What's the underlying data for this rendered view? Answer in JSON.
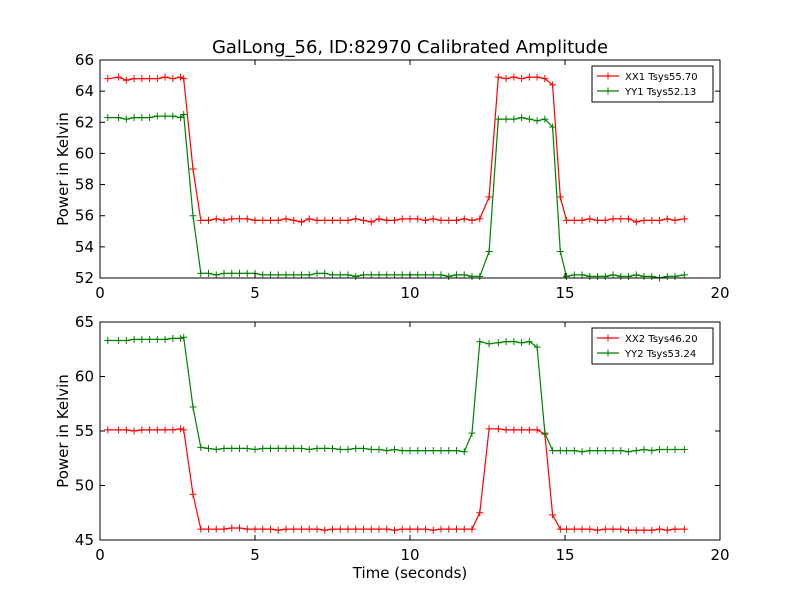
{
  "title": "GalLong_56, ID:82970 Calibrated Amplitude",
  "colors": {
    "xx": "#ff0000",
    "yy": "#008000"
  },
  "chart_data": [
    {
      "type": "line",
      "title": "GalLong_56, ID:82970 Calibrated Amplitude",
      "xlabel": "",
      "ylabel": "Power in Kelvin",
      "xlim": [
        0,
        20
      ],
      "ylim": [
        52,
        66
      ],
      "xticks": [
        0,
        5,
        10,
        15,
        20
      ],
      "yticks": [
        52,
        54,
        56,
        58,
        60,
        62,
        64,
        66
      ],
      "legend_position": "top-right",
      "grid": false,
      "series": [
        {
          "name": "XX1 Tsys55.70",
          "color": "#ff0000",
          "x": [
            0.25,
            0.6,
            0.85,
            1.1,
            1.35,
            1.6,
            1.85,
            2.1,
            2.35,
            2.6,
            2.7,
            3.0,
            3.25,
            3.5,
            3.75,
            4.0,
            4.25,
            4.5,
            4.75,
            5.0,
            5.25,
            5.5,
            5.75,
            6.0,
            6.25,
            6.5,
            6.75,
            7.0,
            7.25,
            7.5,
            7.75,
            8.0,
            8.25,
            8.5,
            8.75,
            9.0,
            9.25,
            9.5,
            9.75,
            10.0,
            10.25,
            10.5,
            10.75,
            11.0,
            11.25,
            11.5,
            11.75,
            12.0,
            12.25,
            12.55,
            12.85,
            13.1,
            13.35,
            13.6,
            13.85,
            14.1,
            14.35,
            14.6,
            14.85,
            15.05,
            15.3,
            15.55,
            15.8,
            16.05,
            16.3,
            16.55,
            16.8,
            17.05,
            17.3,
            17.55,
            17.8,
            18.05,
            18.3,
            18.55,
            18.85
          ],
          "values": [
            64.8,
            64.9,
            64.7,
            64.8,
            64.8,
            64.8,
            64.8,
            64.9,
            64.8,
            64.9,
            64.8,
            59.0,
            55.7,
            55.7,
            55.8,
            55.7,
            55.8,
            55.8,
            55.8,
            55.7,
            55.7,
            55.7,
            55.7,
            55.8,
            55.7,
            55.6,
            55.8,
            55.7,
            55.7,
            55.7,
            55.7,
            55.7,
            55.8,
            55.7,
            55.6,
            55.8,
            55.7,
            55.7,
            55.8,
            55.8,
            55.8,
            55.7,
            55.8,
            55.7,
            55.7,
            55.7,
            55.8,
            55.7,
            55.8,
            57.2,
            64.9,
            64.8,
            64.9,
            64.8,
            64.9,
            64.9,
            64.8,
            64.4,
            57.2,
            55.7,
            55.7,
            55.7,
            55.8,
            55.7,
            55.7,
            55.8,
            55.8,
            55.8,
            55.6,
            55.7,
            55.7,
            55.7,
            55.8,
            55.7,
            55.8
          ]
        },
        {
          "name": "YY1 Tsys52.13",
          "color": "#008000",
          "x": [
            0.25,
            0.6,
            0.85,
            1.1,
            1.35,
            1.6,
            1.85,
            2.1,
            2.35,
            2.6,
            2.7,
            3.0,
            3.25,
            3.5,
            3.75,
            4.0,
            4.25,
            4.5,
            4.75,
            5.0,
            5.25,
            5.5,
            5.75,
            6.0,
            6.25,
            6.5,
            6.75,
            7.0,
            7.25,
            7.5,
            7.75,
            8.0,
            8.25,
            8.5,
            8.75,
            9.0,
            9.25,
            9.5,
            9.75,
            10.0,
            10.25,
            10.5,
            10.75,
            11.0,
            11.25,
            11.5,
            11.75,
            12.0,
            12.25,
            12.55,
            12.85,
            13.1,
            13.35,
            13.6,
            13.85,
            14.1,
            14.35,
            14.6,
            14.85,
            15.05,
            15.3,
            15.55,
            15.8,
            16.05,
            16.3,
            16.55,
            16.8,
            17.05,
            17.3,
            17.55,
            17.8,
            18.05,
            18.3,
            18.55,
            18.85
          ],
          "values": [
            62.3,
            62.3,
            62.2,
            62.3,
            62.3,
            62.3,
            62.4,
            62.4,
            62.4,
            62.3,
            62.5,
            56.0,
            52.3,
            52.3,
            52.2,
            52.3,
            52.3,
            52.3,
            52.3,
            52.3,
            52.2,
            52.2,
            52.2,
            52.2,
            52.2,
            52.2,
            52.2,
            52.3,
            52.3,
            52.2,
            52.2,
            52.2,
            52.1,
            52.2,
            52.2,
            52.2,
            52.2,
            52.2,
            52.2,
            52.2,
            52.2,
            52.2,
            52.2,
            52.2,
            52.1,
            52.2,
            52.2,
            52.1,
            52.1,
            53.7,
            62.2,
            62.2,
            62.2,
            62.3,
            62.2,
            62.1,
            62.2,
            61.7,
            53.7,
            52.1,
            52.2,
            52.2,
            52.1,
            52.1,
            52.1,
            52.2,
            52.1,
            52.1,
            52.2,
            52.1,
            52.1,
            52.0,
            52.1,
            52.1,
            52.2
          ]
        }
      ]
    },
    {
      "type": "line",
      "title": "",
      "xlabel": "Time (seconds)",
      "ylabel": "Power in Kelvin",
      "xlim": [
        0,
        20
      ],
      "ylim": [
        45,
        65
      ],
      "xticks": [
        0,
        5,
        10,
        15,
        20
      ],
      "yticks": [
        45,
        50,
        55,
        60,
        65
      ],
      "legend_position": "top-right",
      "grid": false,
      "series": [
        {
          "name": "XX2 Tsys46.20",
          "color": "#ff0000",
          "x": [
            0.25,
            0.6,
            0.85,
            1.1,
            1.35,
            1.6,
            1.85,
            2.1,
            2.35,
            2.6,
            2.7,
            3.0,
            3.25,
            3.5,
            3.75,
            4.0,
            4.25,
            4.5,
            4.75,
            5.0,
            5.25,
            5.5,
            5.75,
            6.0,
            6.25,
            6.5,
            6.75,
            7.0,
            7.25,
            7.5,
            7.75,
            8.0,
            8.25,
            8.5,
            8.75,
            9.0,
            9.25,
            9.5,
            9.75,
            10.0,
            10.25,
            10.5,
            10.75,
            11.0,
            11.25,
            11.5,
            11.75,
            12.0,
            12.25,
            12.55,
            12.85,
            13.1,
            13.35,
            13.6,
            13.85,
            14.1,
            14.35,
            14.6,
            14.85,
            15.05,
            15.3,
            15.55,
            15.8,
            16.05,
            16.3,
            16.55,
            16.8,
            17.05,
            17.3,
            17.55,
            17.8,
            18.05,
            18.3,
            18.55,
            18.85
          ],
          "values": [
            55.1,
            55.1,
            55.1,
            55.0,
            55.1,
            55.1,
            55.1,
            55.1,
            55.1,
            55.2,
            55.1,
            49.2,
            46.0,
            46.0,
            46.0,
            46.0,
            46.1,
            46.1,
            46.0,
            46.0,
            46.0,
            46.0,
            45.9,
            46.0,
            46.0,
            46.0,
            46.0,
            46.0,
            45.9,
            46.0,
            46.0,
            46.0,
            46.0,
            46.0,
            46.0,
            46.0,
            46.0,
            45.9,
            46.0,
            46.0,
            46.0,
            46.0,
            45.9,
            46.0,
            46.0,
            46.0,
            46.0,
            46.0,
            47.5,
            55.2,
            55.2,
            55.1,
            55.1,
            55.1,
            55.1,
            55.1,
            54.7,
            47.3,
            46.0,
            46.0,
            46.0,
            46.0,
            46.0,
            45.9,
            46.0,
            46.0,
            46.0,
            45.9,
            45.9,
            45.9,
            45.9,
            46.0,
            45.9,
            46.0,
            46.0
          ]
        },
        {
          "name": "YY2 Tsys53.24",
          "color": "#008000",
          "x": [
            0.25,
            0.6,
            0.85,
            1.1,
            1.35,
            1.6,
            1.85,
            2.1,
            2.35,
            2.6,
            2.7,
            3.0,
            3.25,
            3.5,
            3.75,
            4.0,
            4.25,
            4.5,
            4.75,
            5.0,
            5.25,
            5.5,
            5.75,
            6.0,
            6.25,
            6.5,
            6.75,
            7.0,
            7.25,
            7.5,
            7.75,
            8.0,
            8.25,
            8.5,
            8.75,
            9.0,
            9.25,
            9.5,
            9.75,
            10.0,
            10.25,
            10.5,
            10.75,
            11.0,
            11.25,
            11.5,
            11.75,
            12.0,
            12.25,
            12.55,
            12.85,
            13.1,
            13.35,
            13.6,
            13.85,
            14.1,
            14.35,
            14.6,
            14.85,
            15.05,
            15.3,
            15.55,
            15.8,
            16.05,
            16.3,
            16.55,
            16.8,
            17.05,
            17.3,
            17.55,
            17.8,
            18.05,
            18.3,
            18.55,
            18.85
          ],
          "values": [
            63.3,
            63.3,
            63.3,
            63.4,
            63.4,
            63.4,
            63.4,
            63.4,
            63.5,
            63.5,
            63.6,
            57.2,
            53.5,
            53.4,
            53.3,
            53.4,
            53.4,
            53.4,
            53.4,
            53.3,
            53.4,
            53.4,
            53.4,
            53.4,
            53.4,
            53.4,
            53.3,
            53.4,
            53.4,
            53.4,
            53.3,
            53.3,
            53.4,
            53.4,
            53.3,
            53.3,
            53.2,
            53.3,
            53.2,
            53.2,
            53.2,
            53.2,
            53.2,
            53.2,
            53.2,
            53.2,
            53.1,
            54.8,
            63.2,
            63.0,
            63.1,
            63.2,
            63.2,
            63.1,
            63.2,
            62.7,
            54.8,
            53.2,
            53.2,
            53.2,
            53.2,
            53.1,
            53.2,
            53.2,
            53.2,
            53.2,
            53.2,
            53.1,
            53.2,
            53.3,
            53.2,
            53.3,
            53.3,
            53.3,
            53.3
          ]
        }
      ]
    }
  ]
}
